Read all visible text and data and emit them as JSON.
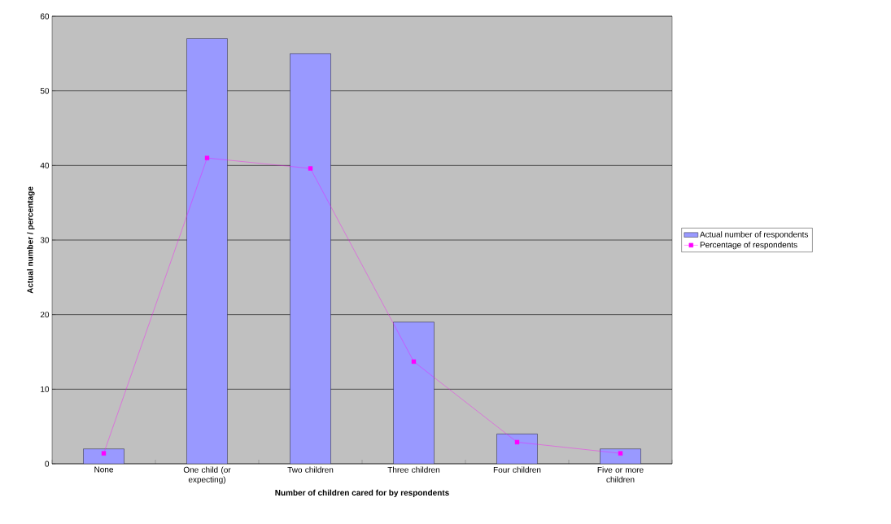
{
  "chart_data": {
    "type": "bar",
    "xlabel": "Number of children cared for by respondents",
    "ylabel": "Actual number / percentage",
    "categories": [
      "None",
      "One child (or expecting)",
      "Two children",
      "Three children",
      "Four children",
      "Five or more children"
    ],
    "series": [
      {
        "name": "Actual number of respondents",
        "color": "#9999ff",
        "values": [
          2,
          57,
          55,
          19,
          4,
          2
        ]
      },
      {
        "name": "Percentage of respondents",
        "type": "line",
        "color": "#ff00ff",
        "marker": "square",
        "values": [
          1.4,
          41.0,
          39.6,
          13.7,
          2.9,
          1.4
        ]
      }
    ],
    "ylim": [
      0,
      60
    ],
    "yticks": [
      0,
      10,
      20,
      30,
      40,
      50,
      60
    ],
    "grid": "y",
    "legend": "right"
  }
}
